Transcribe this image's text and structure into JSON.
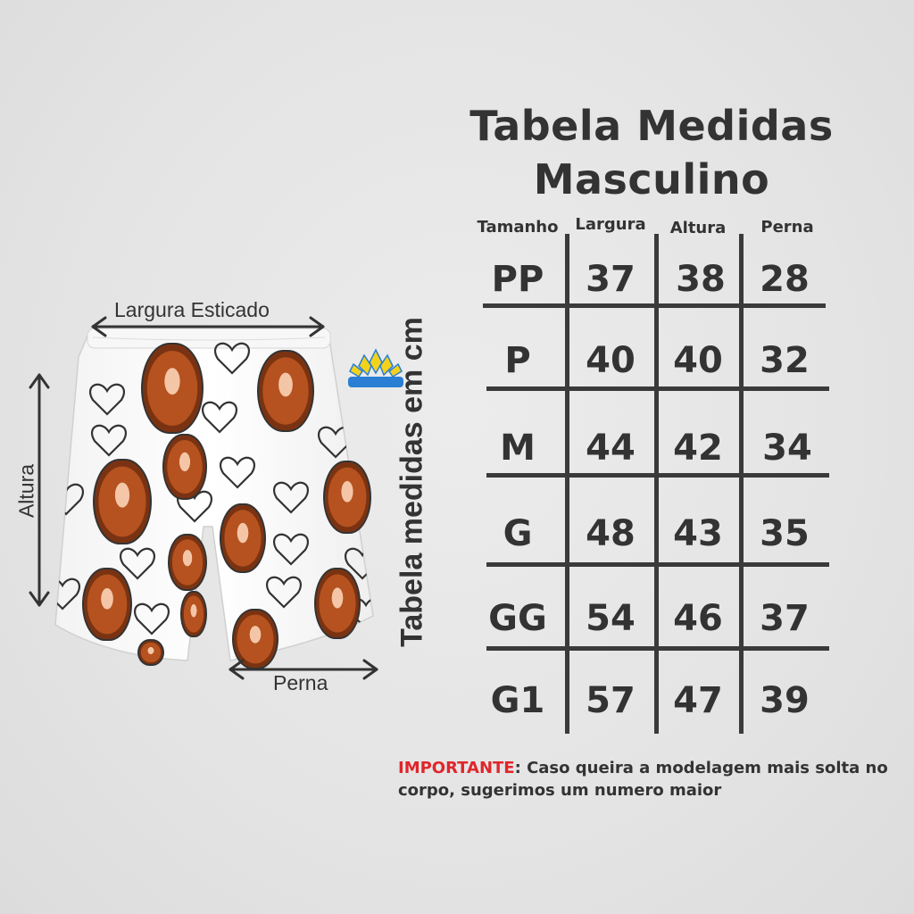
{
  "title_line1": "Tabela Medidas",
  "title_line2": "Masculino",
  "headers": [
    "Tamanho",
    "Largura",
    "Altura",
    "Perna"
  ],
  "rows": [
    {
      "size": "PP",
      "largura": "37",
      "altura": "38",
      "perna": "28"
    },
    {
      "size": "P",
      "largura": "40",
      "altura": "40",
      "perna": "32"
    },
    {
      "size": "M",
      "largura": "44",
      "altura": "42",
      "perna": "34"
    },
    {
      "size": "G",
      "largura": "48",
      "altura": "43",
      "perna": "35"
    },
    {
      "size": "GG",
      "largura": "54",
      "altura": "46",
      "perna": "37"
    },
    {
      "size": "G1",
      "largura": "57",
      "altura": "47",
      "perna": "39"
    }
  ],
  "note": {
    "label": "IMPORTANTE",
    "text": ": Caso queira a modelagem mais solta no corpo, sugerimos um numero maior"
  },
  "product_labels": {
    "largura_esticado": "Largura Esticado",
    "altura": "Altura",
    "perna": "Perna",
    "vertical": "Tabela medidas em cm"
  },
  "colors": {
    "background": "#e6e6e6",
    "text": "#333333",
    "important": "#e0262b",
    "logo_yellow": "#f2d21b",
    "logo_blue": "#2a7fd4"
  }
}
